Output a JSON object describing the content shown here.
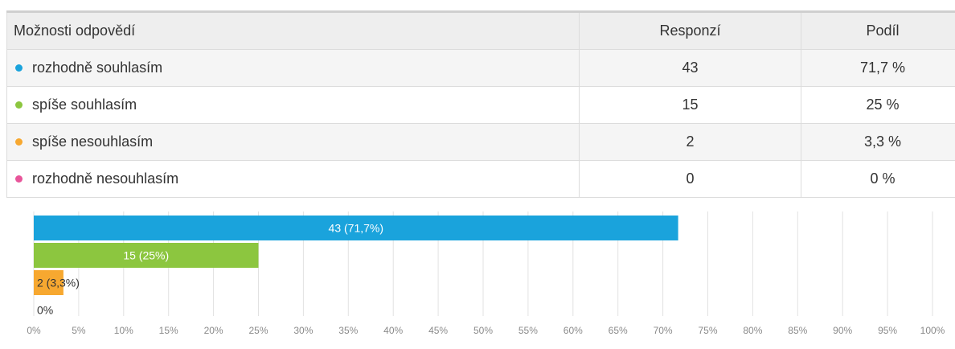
{
  "table": {
    "headers": {
      "option": "Možnosti odpovědí",
      "responses": "Responzí",
      "share": "Podíl"
    },
    "rows": [
      {
        "label": "rozhodně souhlasím",
        "responses": "43",
        "share": "71,7 %"
      },
      {
        "label": "spíše souhlasím",
        "responses": "15",
        "share": "25 %"
      },
      {
        "label": "spíše nesouhlasím",
        "responses": "2",
        "share": "3,3 %"
      },
      {
        "label": "rozhodně nesouhlasím",
        "responses": "0",
        "share": "0 %"
      }
    ]
  },
  "chart_data": {
    "type": "bar",
    "orientation": "horizontal",
    "categories": [
      "rozhodně souhlasím",
      "spíše souhlasím",
      "spíše nesouhlasím",
      "rozhodně nesouhlasím"
    ],
    "values": [
      71.7,
      25,
      3.3,
      0
    ],
    "counts": [
      43,
      15,
      2,
      0
    ],
    "data_labels": [
      "43 (71,7%)",
      "15 (25%)",
      "2 (3,3%)",
      "0%"
    ],
    "colors": [
      "#1aa3dc",
      "#8cc63f",
      "#f7a830",
      "#e8559a"
    ],
    "xlim": [
      0,
      100
    ],
    "xticks": [
      "0%",
      "5%",
      "10%",
      "15%",
      "20%",
      "25%",
      "30%",
      "35%",
      "40%",
      "45%",
      "50%",
      "55%",
      "60%",
      "65%",
      "70%",
      "75%",
      "80%",
      "85%",
      "90%",
      "95%",
      "100%"
    ],
    "grid": true,
    "legend": "none",
    "title": "",
    "xlabel": "",
    "ylabel": ""
  }
}
